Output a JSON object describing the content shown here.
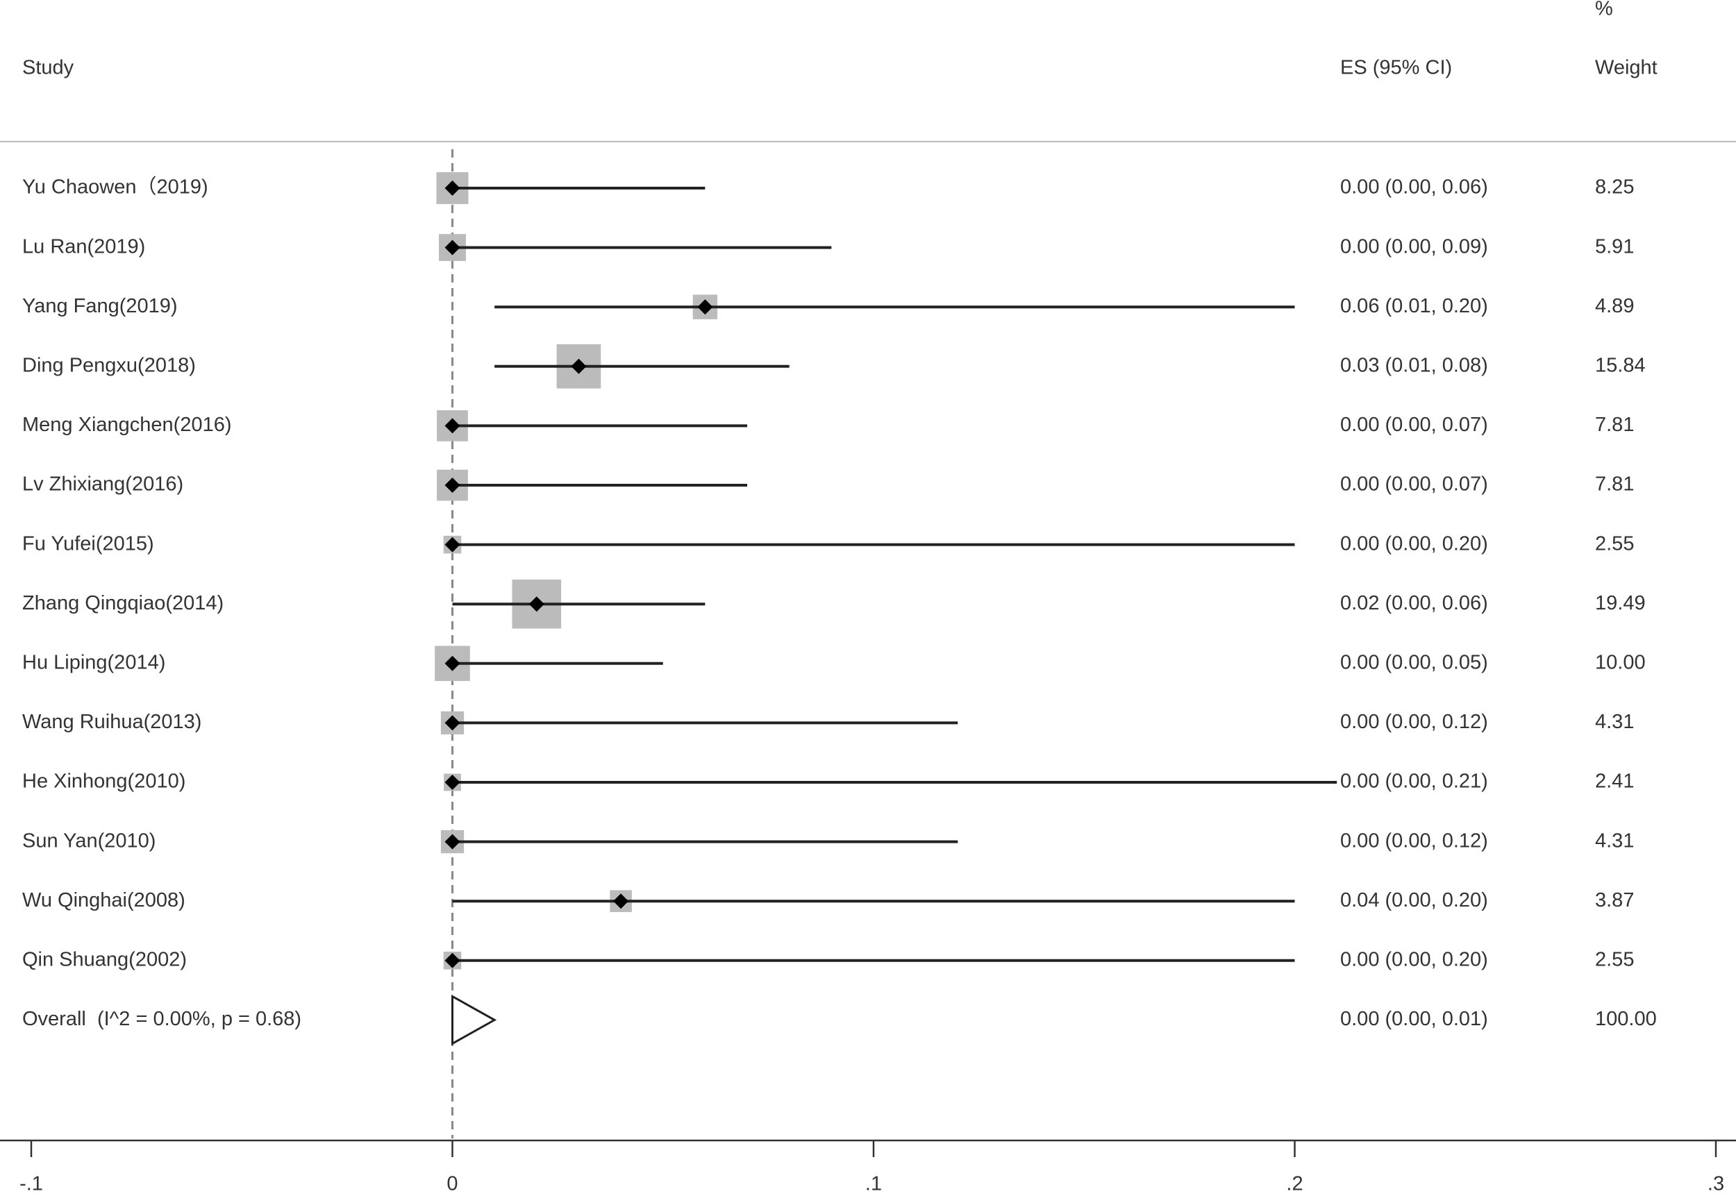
{
  "chart_data": {
    "type": "forest",
    "headers": {
      "study": "Study",
      "es": "ES (95% CI)",
      "weight": [
        "%",
        "Weight"
      ]
    },
    "box_color": "#bbbbbb",
    "line_color": "#222222",
    "studies": [
      {
        "name": "Yu Chaowen（2019)",
        "es": 0.0,
        "ci": [
          0.0,
          0.06
        ],
        "es_label": "0.00 (0.00, 0.06)",
        "weight": 8.25,
        "weight_label": "8.25"
      },
      {
        "name": "Lu Ran(2019)",
        "es": 0.0,
        "ci": [
          0.0,
          0.09
        ],
        "es_label": "0.00 (0.00, 0.09)",
        "weight": 5.91,
        "weight_label": "5.91"
      },
      {
        "name": "Yang Fang(2019)",
        "es": 0.06,
        "ci": [
          0.01,
          0.2
        ],
        "es_label": "0.06 (0.01, 0.20)",
        "weight": 4.89,
        "weight_label": "4.89"
      },
      {
        "name": "Ding Pengxu(2018)",
        "es": 0.03,
        "ci": [
          0.01,
          0.08
        ],
        "es_label": "0.03 (0.01, 0.08)",
        "weight": 15.84,
        "weight_label": "15.84"
      },
      {
        "name": "Meng Xiangchen(2016)",
        "es": 0.0,
        "ci": [
          0.0,
          0.07
        ],
        "es_label": "0.00 (0.00, 0.07)",
        "weight": 7.81,
        "weight_label": "7.81"
      },
      {
        "name": "Lv Zhixiang(2016)",
        "es": 0.0,
        "ci": [
          0.0,
          0.07
        ],
        "es_label": "0.00 (0.00, 0.07)",
        "weight": 7.81,
        "weight_label": "7.81"
      },
      {
        "name": "Fu Yufei(2015)",
        "es": 0.0,
        "ci": [
          0.0,
          0.2
        ],
        "es_label": "0.00 (0.00, 0.20)",
        "weight": 2.55,
        "weight_label": "2.55"
      },
      {
        "name": "Zhang Qingqiao(2014)",
        "es": 0.02,
        "ci": [
          0.0,
          0.06
        ],
        "es_label": "0.02 (0.00, 0.06)",
        "weight": 19.49,
        "weight_label": "19.49"
      },
      {
        "name": "Hu Liping(2014)",
        "es": 0.0,
        "ci": [
          0.0,
          0.05
        ],
        "es_label": "0.00 (0.00, 0.05)",
        "weight": 10,
        "weight_label": "10.00"
      },
      {
        "name": "Wang Ruihua(2013)",
        "es": 0.0,
        "ci": [
          0.0,
          0.12
        ],
        "es_label": "0.00 (0.00, 0.12)",
        "weight": 4.31,
        "weight_label": "4.31"
      },
      {
        "name": "He Xinhong(2010)",
        "es": 0.0,
        "ci": [
          0.0,
          0.21
        ],
        "es_label": "0.00 (0.00, 0.21)",
        "weight": 2.41,
        "weight_label": "2.41"
      },
      {
        "name": "Sun Yan(2010)",
        "es": 0.0,
        "ci": [
          0.0,
          0.12
        ],
        "es_label": "0.00 (0.00, 0.12)",
        "weight": 4.31,
        "weight_label": "4.31"
      },
      {
        "name": "Wu Qinghai(2008)",
        "es": 0.04,
        "ci": [
          0.0,
          0.2
        ],
        "es_label": "0.04 (0.00, 0.20)",
        "weight": 3.87,
        "weight_label": "3.87"
      },
      {
        "name": "Qin Shuang(2002)",
        "es": 0.0,
        "ci": [
          0.0,
          0.2
        ],
        "es_label": "0.00 (0.00, 0.20)",
        "weight": 2.55,
        "weight_label": "2.55"
      }
    ],
    "overall": {
      "name": "Overall  (I^2 = 0.00%, p = 0.68)",
      "es": 0.0,
      "ci": [
        0.0,
        0.01
      ],
      "es_label": "0.00 (0.00, 0.01)",
      "weight": 100,
      "weight_label": "100.00"
    },
    "xlim": [
      -0.1,
      0.3
    ],
    "xticks": [
      {
        "value": -0.1,
        "label": "-.1"
      },
      0,
      {
        "value": 0.1,
        "label": ".1"
      },
      {
        "value": 0.2,
        "label": ".2"
      },
      {
        "value": 0.3,
        "label": ".3"
      }
    ]
  }
}
